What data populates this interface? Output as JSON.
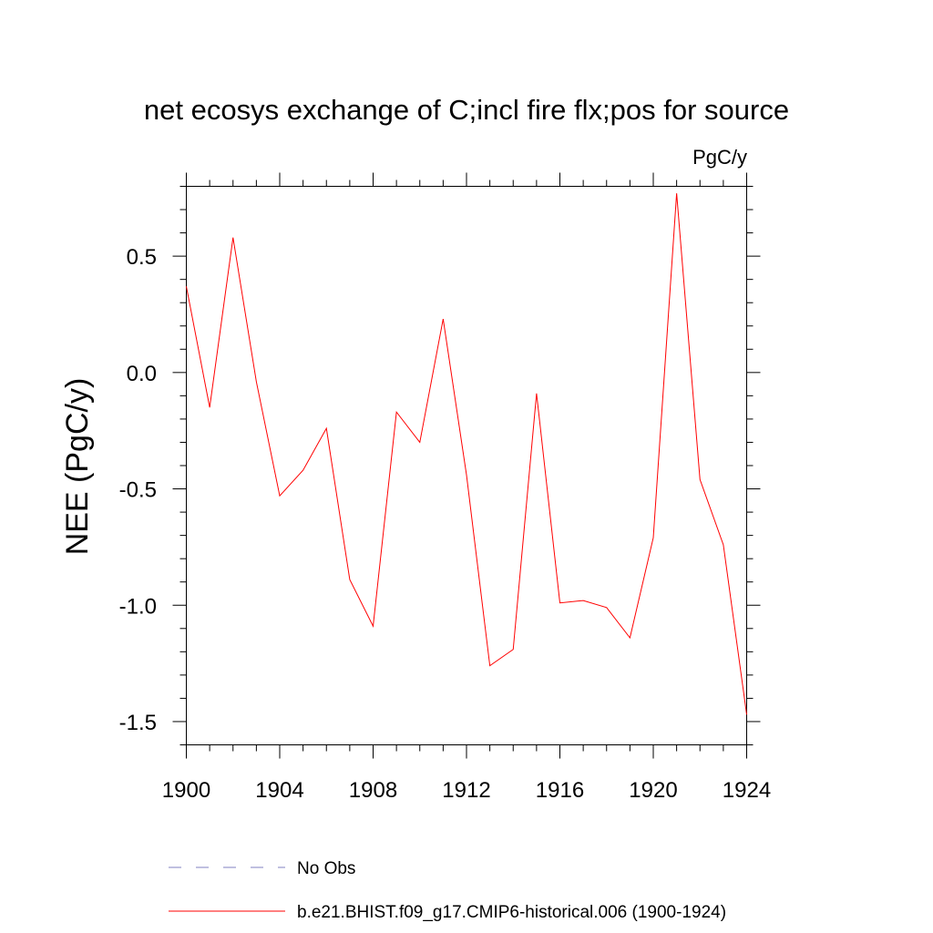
{
  "chart_data": {
    "type": "line",
    "title": "net ecosys exchange of C;incl fire flx;pos for source",
    "units": "PgC/y",
    "xlabel": "",
    "ylabel": "NEE  (PgC/y)",
    "xlim": [
      1900,
      1924
    ],
    "ylim": [
      -1.6,
      0.8
    ],
    "x_ticks": [
      1900,
      1904,
      1908,
      1912,
      1916,
      1920,
      1924
    ],
    "y_ticks": [
      0.5,
      0.0,
      -0.5,
      -1.0,
      -1.5
    ],
    "x_tick_labels": [
      "1900",
      "1904",
      "1908",
      "1912",
      "1916",
      "1920",
      "1924"
    ],
    "y_tick_labels": [
      "0.5",
      "0.0",
      "-0.5",
      "-1.0",
      "-1.5"
    ],
    "grid": false,
    "legend_position": "bottom",
    "series": [
      {
        "name": "No Obs",
        "color": "#8080c0",
        "dash": "dashed",
        "x": [],
        "values": []
      },
      {
        "name": "b.e21.BHIST.f09_g17.CMIP6-historical.006 (1900-1924)",
        "color": "#ff0000",
        "dash": "solid",
        "x": [
          1900,
          1901,
          1902,
          1903,
          1904,
          1905,
          1906,
          1907,
          1908,
          1909,
          1910,
          1911,
          1912,
          1913,
          1914,
          1915,
          1916,
          1917,
          1918,
          1919,
          1920,
          1921,
          1922,
          1923,
          1924
        ],
        "values": [
          0.37,
          -0.15,
          0.58,
          -0.04,
          -0.53,
          -0.42,
          -0.24,
          -0.89,
          -1.09,
          -0.17,
          -0.3,
          0.23,
          -0.44,
          -1.26,
          -1.19,
          -0.09,
          -0.99,
          -0.98,
          -1.01,
          -1.14,
          -0.71,
          0.77,
          -0.46,
          -0.74,
          -1.47
        ]
      }
    ]
  }
}
